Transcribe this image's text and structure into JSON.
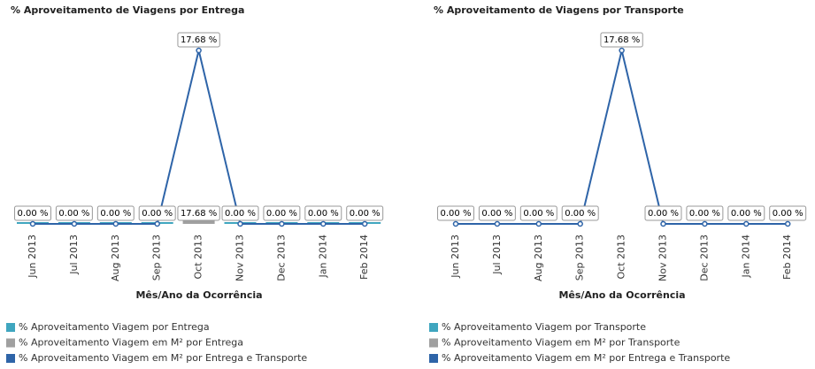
{
  "chart_data": [
    {
      "type": "line",
      "title": "% Aproveitamento de Viagens por Entrega",
      "x_label": "Mês/Ano da Ocorrência",
      "categories": [
        "Jun 2013",
        "Jul 2013",
        "Aug 2013",
        "Sep 2013",
        "Oct 2013",
        "Nov 2013",
        "Dec 2013",
        "Jan 2014",
        "Feb 2014"
      ],
      "ylim": [
        0,
        20
      ],
      "y2lim": [
        0,
        1000
      ],
      "series": [
        {
          "name": "% Aproveitamento Viagem por Entrega",
          "color": "#3fa6bf",
          "kind": "bar",
          "values": [
            0,
            0,
            0,
            0,
            null,
            0,
            0,
            0,
            0
          ]
        },
        {
          "name": "% Aproveitamento Viagem em M² por Entrega",
          "color": "#a0a0a0",
          "kind": "bar",
          "axis": "y2",
          "values": [
            null,
            null,
            null,
            null,
            17.68,
            null,
            null,
            null,
            null
          ],
          "value_labels": [
            null,
            null,
            null,
            null,
            "17.68 %",
            null,
            null,
            null,
            null
          ]
        },
        {
          "name": "% Aproveitamento Viagem em M² por Entrega e Transporte",
          "color": "#2e64a8",
          "kind": "line",
          "values": [
            0,
            0,
            0,
            0,
            17.68,
            0,
            0,
            0,
            0
          ],
          "value_labels": [
            "0.00 %",
            "0.00 %",
            "0.00 %",
            "0.00 %",
            "17.68 %",
            "0.00 %",
            "0.00 %",
            "0.00 %",
            "0.00 %"
          ]
        }
      ]
    },
    {
      "type": "line",
      "title": "% Aproveitamento de Viagens por Transporte",
      "x_label": "Mês/Ano da Ocorrência",
      "categories": [
        "Jun 2013",
        "Jul 2013",
        "Aug 2013",
        "Sep 2013",
        "Oct 2013",
        "Nov 2013",
        "Dec 2013",
        "Jan 2014",
        "Feb 2014"
      ],
      "ylim": [
        0,
        20
      ],
      "series": [
        {
          "name": "% Aproveitamento Viagem por Transporte",
          "color": "#3fa6bf",
          "kind": "bar"
        },
        {
          "name": "% Aproveitamento Viagem em M² por Transporte",
          "color": "#a0a0a0",
          "kind": "bar"
        },
        {
          "name": "% Aproveitamento Viagem em M² por Entrega e Transporte",
          "color": "#2e64a8",
          "kind": "line",
          "values": [
            0,
            0,
            0,
            0,
            17.68,
            0,
            0,
            0,
            0
          ],
          "value_labels": [
            "0.00 %",
            "0.00 %",
            "0.00 %",
            "0.00 %",
            "17.68 %",
            "0.00 %",
            "0.00 %",
            "0.00 %",
            "0.00 %"
          ]
        }
      ]
    }
  ]
}
